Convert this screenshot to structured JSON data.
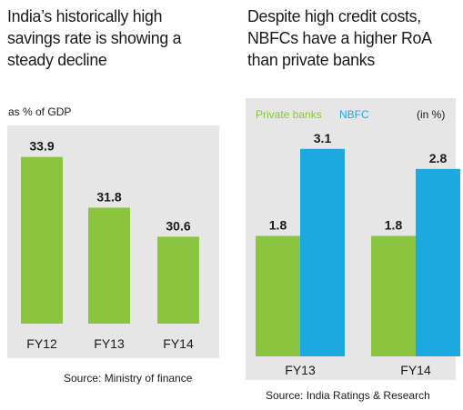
{
  "colors": {
    "green": "#8bc53f",
    "blue": "#1ba9e0",
    "panel_bg": "#e6e6e6"
  },
  "chart_data": [
    {
      "type": "bar",
      "title": "India’s historically high savings rate is showing a steady decline",
      "title_lines": [
        "India’s historically high",
        "savings rate is showing a",
        "steady decline"
      ],
      "unit_label": "as % of GDP",
      "categories": [
        "FY12",
        "FY13",
        "FY14"
      ],
      "values": [
        33.9,
        31.8,
        30.6
      ],
      "value_labels": [
        "33.9",
        "31.8",
        "30.6"
      ],
      "ylim": [
        27,
        34.6
      ],
      "source": "Source: Ministry of finance"
    },
    {
      "type": "bar",
      "title": "Despite high credit costs, NBFCs have a higher RoA than private banks",
      "title_lines": [
        "Despite high credit costs,",
        "NBFCs have a higher RoA",
        "than private banks"
      ],
      "unit_label": "(in %)",
      "categories": [
        "FY13",
        "FY14"
      ],
      "series": [
        {
          "name": "Private banks",
          "values": [
            1.8,
            1.8
          ],
          "value_labels": [
            "1.8",
            "1.8"
          ]
        },
        {
          "name": "NBFC",
          "values": [
            3.1,
            2.8
          ],
          "value_labels": [
            "3.1",
            "2.8"
          ]
        }
      ],
      "ylim": [
        0,
        3.45
      ],
      "legend": "top-left",
      "source": "Source: India Ratings & Research"
    }
  ]
}
